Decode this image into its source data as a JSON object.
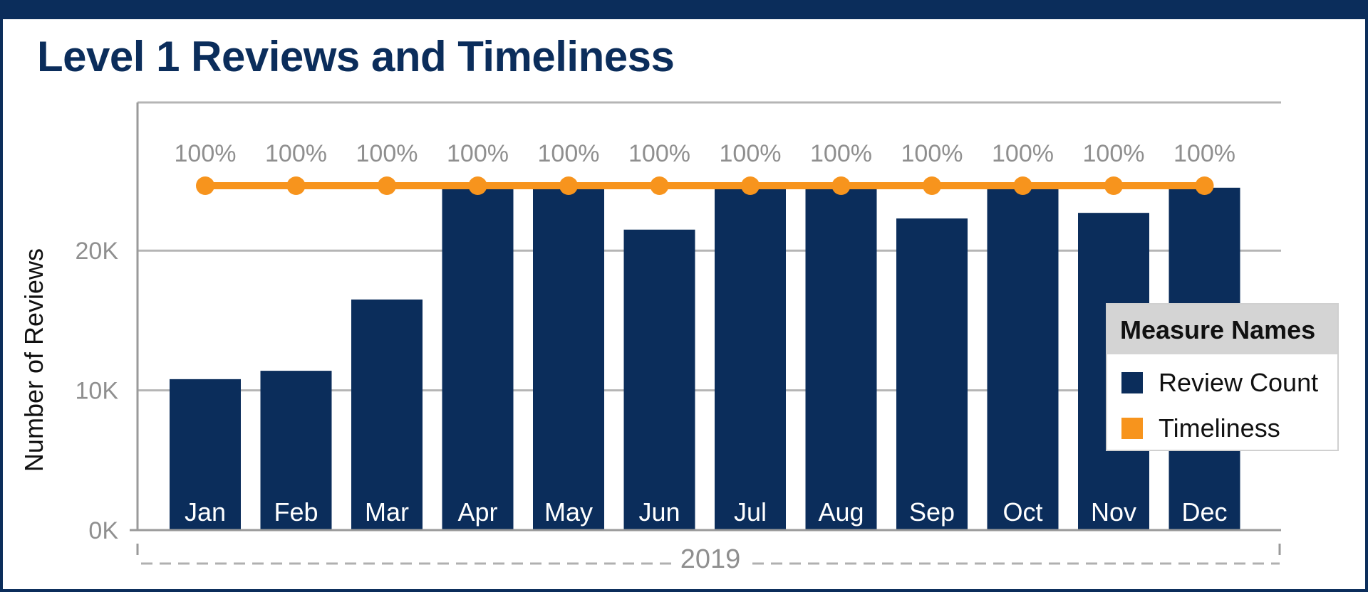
{
  "title": "Level 1 Reviews and Timeliness",
  "legend": {
    "title": "Measure Names",
    "items": [
      {
        "label": "Review Count",
        "color": "#0b2d5b"
      },
      {
        "label": "Timeliness",
        "color": "#f7941d"
      }
    ]
  },
  "colors": {
    "bar": "#0b2d5b",
    "line": "#f7941d",
    "axis": "#9a9a9a",
    "grid": "#b5b5b5",
    "text_muted": "#8f8f8f"
  },
  "chart_data": {
    "type": "bar",
    "title": "Level 1 Reviews and Timeliness",
    "xlabel": "2019",
    "ylabel": "Number of Reviews",
    "categories": [
      "Jan",
      "Feb",
      "Mar",
      "Apr",
      "May",
      "Jun",
      "Jul",
      "Aug",
      "Sep",
      "Oct",
      "Nov",
      "Dec"
    ],
    "series": [
      {
        "name": "Review Count",
        "type": "bar",
        "values": [
          10800,
          11400,
          16500,
          24500,
          24500,
          21500,
          24500,
          24500,
          22300,
          24500,
          22700,
          24500
        ]
      },
      {
        "name": "Timeliness",
        "type": "line",
        "values": [
          100,
          100,
          100,
          100,
          100,
          100,
          100,
          100,
          100,
          100,
          100,
          100
        ],
        "labels": [
          "100%",
          "100%",
          "100%",
          "100%",
          "100%",
          "100%",
          "100%",
          "100%",
          "100%",
          "100%",
          "100%",
          "100%"
        ]
      }
    ],
    "ylim": [
      0,
      30600
    ],
    "yticks": [
      0,
      10000,
      20000
    ],
    "ytick_labels": [
      "0K",
      "10K",
      "20K"
    ],
    "grid": true,
    "legend_position": "right"
  }
}
